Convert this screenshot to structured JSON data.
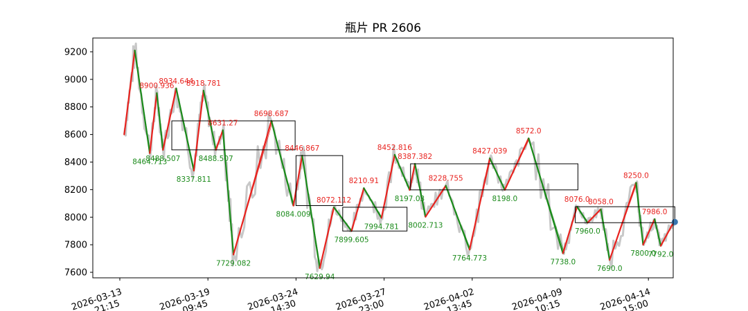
{
  "chart_data": {
    "type": "line",
    "title": "瓶片 PR 2606",
    "xlabel": "",
    "ylabel": "",
    "ylim": [
      7560,
      9300
    ],
    "yticks": [
      7600,
      7800,
      8000,
      8200,
      8400,
      8600,
      8800,
      9000,
      9200
    ],
    "xticks": [
      {
        "line1": "2026-03-13",
        "line2": "21:15"
      },
      {
        "line1": "2026-03-19",
        "line2": "09:45"
      },
      {
        "line1": "2026-03-24",
        "line2": "14:30"
      },
      {
        "line1": "2026-03-27",
        "line2": "23:00"
      },
      {
        "line1": "2026-04-02",
        "line2": "13:45"
      },
      {
        "line1": "2026-04-09",
        "line2": "10:15"
      },
      {
        "line1": "2026-04-14",
        "line2": "15:00"
      }
    ],
    "x_range": [
      -0.2,
      6.3
    ],
    "colors": {
      "price": "#c8c8c8",
      "up": "#e8231f",
      "down": "#1a8a1a",
      "marker": "#3a76b0"
    },
    "series": [
      {
        "role": "zigzag",
        "points": [
          {
            "x": 0.05,
            "y": 8600
          },
          {
            "x": 0.17,
            "y": 9210
          },
          {
            "x": 0.34,
            "y": 8464.713
          },
          {
            "x": 0.42,
            "y": 8900.936
          },
          {
            "x": 0.49,
            "y": 8488.507
          },
          {
            "x": 0.64,
            "y": 8934.644
          },
          {
            "x": 0.84,
            "y": 8337.811
          },
          {
            "x": 0.95,
            "y": 8918.781
          },
          {
            "x": 1.09,
            "y": 8488.507
          },
          {
            "x": 1.17,
            "y": 8631.27
          },
          {
            "x": 1.29,
            "y": 7729.082
          },
          {
            "x": 1.72,
            "y": 8698.687
          },
          {
            "x": 1.97,
            "y": 8084.009
          },
          {
            "x": 2.07,
            "y": 8446.867
          },
          {
            "x": 2.27,
            "y": 7629.94
          },
          {
            "x": 2.43,
            "y": 8072.112
          },
          {
            "x": 2.63,
            "y": 7899.605
          },
          {
            "x": 2.77,
            "y": 8210.91
          },
          {
            "x": 2.97,
            "y": 7994.781
          },
          {
            "x": 3.12,
            "y": 8452.816
          },
          {
            "x": 3.29,
            "y": 8197.03
          },
          {
            "x": 3.35,
            "y": 8387.382
          },
          {
            "x": 3.47,
            "y": 8002.713
          },
          {
            "x": 3.7,
            "y": 8228.755
          },
          {
            "x": 3.97,
            "y": 7764.773
          },
          {
            "x": 4.2,
            "y": 8427.039
          },
          {
            "x": 4.37,
            "y": 8198.0
          },
          {
            "x": 4.64,
            "y": 8572.0
          },
          {
            "x": 5.03,
            "y": 7738.0
          },
          {
            "x": 5.19,
            "y": 8076.0
          },
          {
            "x": 5.31,
            "y": 7960.0
          },
          {
            "x": 5.46,
            "y": 8058.0
          },
          {
            "x": 5.56,
            "y": 7690.0
          },
          {
            "x": 5.86,
            "y": 8250.0
          },
          {
            "x": 5.94,
            "y": 7800.0
          },
          {
            "x": 6.07,
            "y": 7986.0
          },
          {
            "x": 6.14,
            "y": 7792.0
          },
          {
            "x": 6.3,
            "y": 7980.0
          }
        ]
      }
    ],
    "labels": [
      {
        "text": "8464.713",
        "x": 0.34,
        "y": 8464.713,
        "kind": "trough"
      },
      {
        "text": "8900.936",
        "x": 0.42,
        "y": 8900.936,
        "kind": "peak"
      },
      {
        "text": "8488.507",
        "x": 0.49,
        "y": 8488.507,
        "kind": "trough"
      },
      {
        "text": "8934.644",
        "x": 0.64,
        "y": 8934.644,
        "kind": "peak"
      },
      {
        "text": "8337.811",
        "x": 0.84,
        "y": 8337.811,
        "kind": "trough"
      },
      {
        "text": "8918.781",
        "x": 0.95,
        "y": 8918.781,
        "kind": "peak"
      },
      {
        "text": "8488.507",
        "x": 1.09,
        "y": 8488.507,
        "kind": "trough"
      },
      {
        "text": "8631.27",
        "x": 1.17,
        "y": 8631.27,
        "kind": "peak"
      },
      {
        "text": "7729.082",
        "x": 1.29,
        "y": 7729.082,
        "kind": "trough"
      },
      {
        "text": "8698.687",
        "x": 1.72,
        "y": 8698.687,
        "kind": "peak"
      },
      {
        "text": "8084.009",
        "x": 1.97,
        "y": 8084.009,
        "kind": "trough"
      },
      {
        "text": "8446.867",
        "x": 2.07,
        "y": 8446.867,
        "kind": "peak"
      },
      {
        "text": "7629.94",
        "x": 2.27,
        "y": 7629.94,
        "kind": "trough"
      },
      {
        "text": "8072.112",
        "x": 2.43,
        "y": 8072.112,
        "kind": "peak"
      },
      {
        "text": "7899.605",
        "x": 2.63,
        "y": 7899.605,
        "kind": "trough"
      },
      {
        "text": "8210.91",
        "x": 2.77,
        "y": 8210.91,
        "kind": "peak"
      },
      {
        "text": "7994.781",
        "x": 2.97,
        "y": 7994.781,
        "kind": "trough"
      },
      {
        "text": "8452.816",
        "x": 3.12,
        "y": 8452.816,
        "kind": "peak"
      },
      {
        "text": "8197.03",
        "x": 3.29,
        "y": 8197.03,
        "kind": "trough"
      },
      {
        "text": "8387.382",
        "x": 3.35,
        "y": 8387.382,
        "kind": "peak"
      },
      {
        "text": "8002.713",
        "x": 3.47,
        "y": 8002.713,
        "kind": "trough"
      },
      {
        "text": "8228.755",
        "x": 3.7,
        "y": 8228.755,
        "kind": "peak"
      },
      {
        "text": "7764.773",
        "x": 3.97,
        "y": 7764.773,
        "kind": "trough"
      },
      {
        "text": "8427.039",
        "x": 4.2,
        "y": 8427.039,
        "kind": "peak"
      },
      {
        "text": "8198.0",
        "x": 4.37,
        "y": 8198.0,
        "kind": "trough"
      },
      {
        "text": "8572.0",
        "x": 4.64,
        "y": 8572.0,
        "kind": "peak"
      },
      {
        "text": "7738.0",
        "x": 5.03,
        "y": 7738.0,
        "kind": "trough"
      },
      {
        "text": "8076.0",
        "x": 5.19,
        "y": 8076.0,
        "kind": "peak"
      },
      {
        "text": "7960.0",
        "x": 5.31,
        "y": 7960.0,
        "kind": "trough"
      },
      {
        "text": "8058.0",
        "x": 5.46,
        "y": 8058.0,
        "kind": "peak"
      },
      {
        "text": "7690.0",
        "x": 5.56,
        "y": 7690.0,
        "kind": "trough"
      },
      {
        "text": "8250.0",
        "x": 5.86,
        "y": 8250.0,
        "kind": "peak"
      },
      {
        "text": "7800.0",
        "x": 5.94,
        "y": 7800.0,
        "kind": "trough"
      },
      {
        "text": "7986.0",
        "x": 6.07,
        "y": 7986.0,
        "kind": "peak"
      },
      {
        "text": "7792.0",
        "x": 6.14,
        "y": 7792.0,
        "kind": "trough"
      }
    ],
    "boxes": [
      {
        "x0": 0.59,
        "x1": 1.99,
        "y0": 8488.507,
        "y1": 8698.687
      },
      {
        "x0": 2.0,
        "x1": 2.53,
        "y0": 8084.009,
        "y1": 8446.867
      },
      {
        "x0": 2.53,
        "x1": 3.26,
        "y0": 7899.605,
        "y1": 8072.112
      },
      {
        "x0": 3.3,
        "x1": 5.2,
        "y0": 8198.0,
        "y1": 8387.382
      },
      {
        "x0": 5.17,
        "x1": 6.3,
        "y0": 7960.0,
        "y1": 8076.0
      }
    ],
    "last_point": {
      "x": 6.3,
      "y": 7965
    }
  }
}
